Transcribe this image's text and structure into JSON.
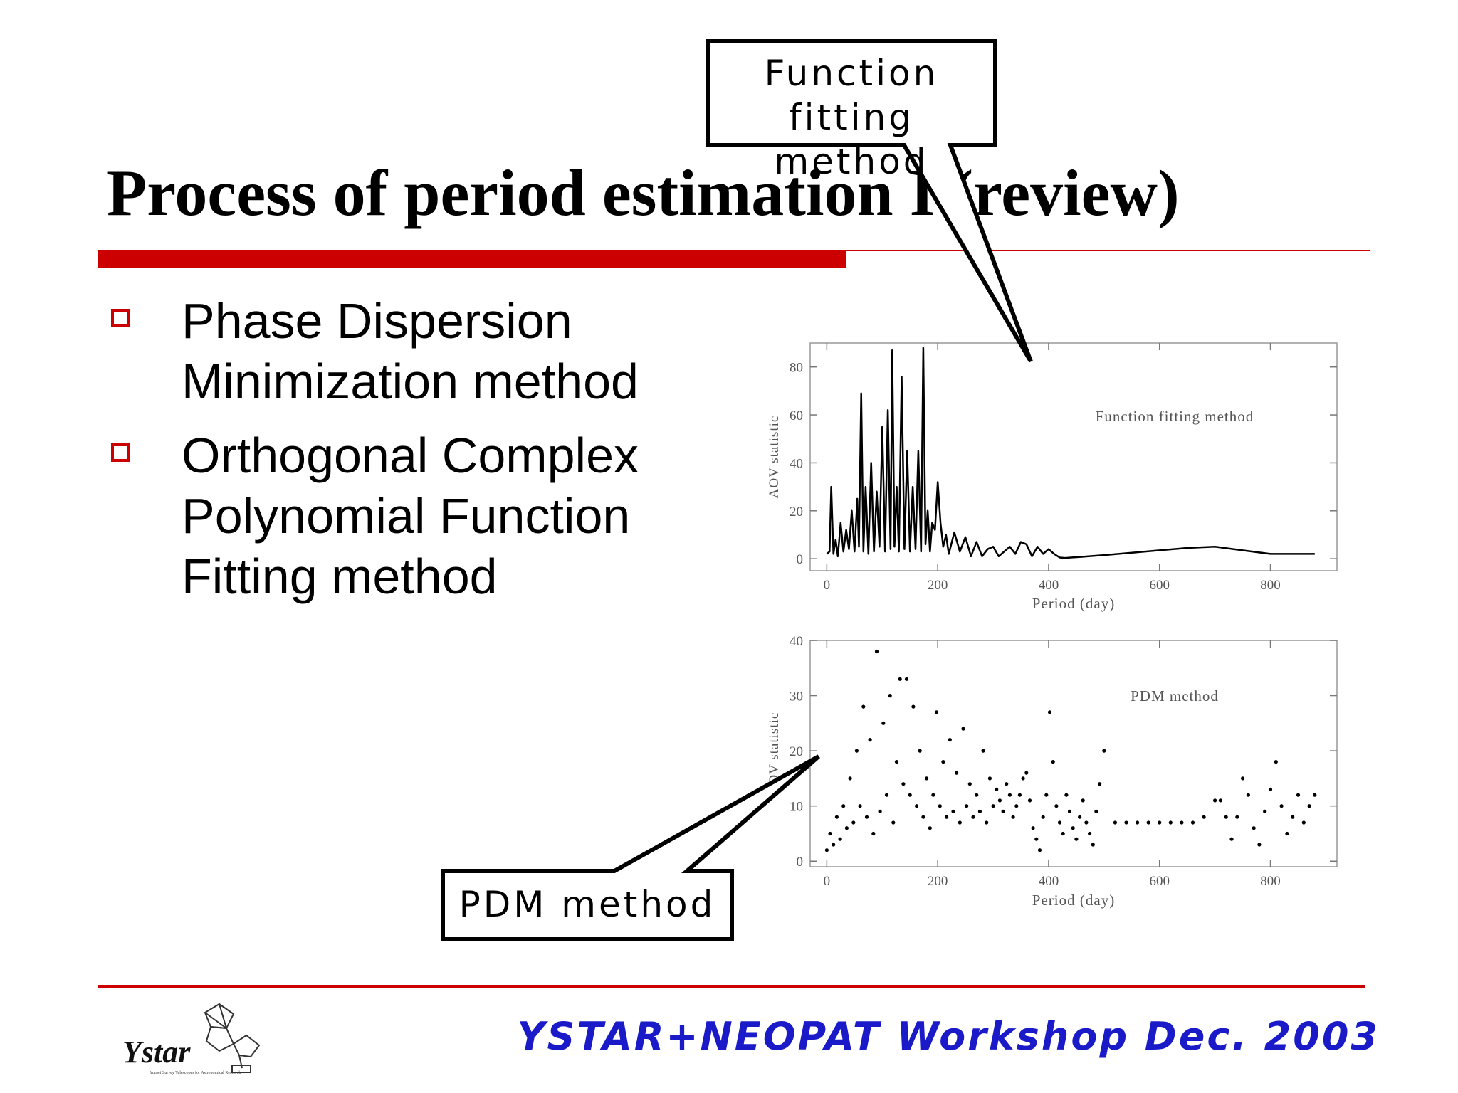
{
  "title": "Process of period estimation I (review)",
  "bullets": [
    {
      "lines": [
        "Phase Dispersion",
        "Minimization method"
      ]
    },
    {
      "lines": [
        "Orthogonal Complex",
        "Polynomial Function",
        "Fitting method"
      ]
    }
  ],
  "callouts": {
    "function_fitting": [
      "Function",
      "fitting",
      "method"
    ],
    "pdm": "PDM method"
  },
  "footer": "YSTAR+NEOPAT Workshop Dec. 2003",
  "logo": {
    "name": "Ystar",
    "subtitle": "Yonsei Survey Telescopes for Astronomical Research"
  },
  "colors": {
    "accent": "#cc0000",
    "footer": "#1a1ac8"
  },
  "chart_data": [
    {
      "type": "line",
      "title": "Function fitting method",
      "xlabel": "Period (day)",
      "ylabel": "AOV statistic",
      "xlim": [
        -30,
        920
      ],
      "ylim": [
        -5,
        90
      ],
      "xticks": [
        "0",
        "200",
        "400",
        "600",
        "800"
      ],
      "yticks": [
        "0",
        "20",
        "40",
        "60",
        "80"
      ],
      "grid": false,
      "series": [
        {
          "x": [
            0,
            5,
            8,
            12,
            16,
            20,
            25,
            30,
            35,
            40,
            45,
            50,
            55,
            58,
            62,
            66,
            70,
            75,
            80,
            85,
            90,
            95,
            100,
            105,
            110,
            115,
            118,
            122,
            126,
            130,
            135,
            140,
            145,
            150,
            155,
            160,
            165,
            170,
            174,
            178,
            182,
            186,
            190,
            195,
            200,
            205,
            210,
            215,
            220,
            230,
            240,
            250,
            260,
            270,
            280,
            290,
            300,
            310,
            320,
            330,
            340,
            350,
            360,
            370,
            380,
            390,
            400,
            410,
            420,
            430,
            440,
            460,
            500,
            550,
            600,
            650,
            700,
            750,
            800,
            850,
            880
          ],
          "y": [
            2,
            3,
            30,
            2,
            8,
            1,
            15,
            3,
            12,
            4,
            20,
            3,
            25,
            5,
            69,
            3,
            30,
            2,
            40,
            3,
            28,
            5,
            55,
            3,
            62,
            4,
            87,
            5,
            30,
            3,
            76,
            4,
            45,
            3,
            30,
            4,
            45,
            3,
            88,
            6,
            20,
            3,
            15,
            12,
            32,
            15,
            5,
            10,
            2,
            11,
            3,
            9,
            1,
            7,
            1,
            4,
            5,
            1,
            3,
            5,
            2,
            7,
            6,
            1,
            5,
            2,
            4,
            2,
            0.5,
            0.3,
            0.5,
            0.8,
            1.5,
            2.5,
            3.5,
            4.5,
            5,
            3.5,
            2,
            2,
            2
          ]
        }
      ]
    },
    {
      "type": "scatter",
      "title": "PDM method",
      "xlabel": "Period (day)",
      "ylabel": "AOV statistic",
      "xlim": [
        -30,
        920
      ],
      "ylim": [
        -1,
        40
      ],
      "xticks": [
        "0",
        "200",
        "400",
        "600",
        "800"
      ],
      "yticks": [
        "0",
        "10",
        "20",
        "30",
        "40"
      ],
      "grid": false,
      "series": [
        {
          "x": [
            0,
            6,
            12,
            18,
            24,
            30,
            36,
            42,
            48,
            54,
            60,
            66,
            72,
            78,
            84,
            90,
            96,
            102,
            108,
            114,
            120,
            126,
            132,
            138,
            144,
            150,
            156,
            162,
            168,
            174,
            180,
            186,
            192,
            198,
            204,
            210,
            216,
            222,
            228,
            234,
            240,
            246,
            252,
            258,
            264,
            270,
            276,
            282,
            288,
            294,
            300,
            306,
            312,
            318,
            324,
            330,
            336,
            342,
            348,
            354,
            360,
            366,
            372,
            378,
            384,
            390,
            396,
            402,
            408,
            414,
            420,
            426,
            432,
            438,
            444,
            450,
            456,
            462,
            468,
            474,
            480,
            486,
            492,
            500,
            520,
            540,
            560,
            580,
            600,
            620,
            640,
            660,
            680,
            700,
            710,
            720,
            730,
            740,
            750,
            760,
            770,
            780,
            790,
            800,
            810,
            820,
            830,
            840,
            850,
            860,
            870,
            880
          ],
          "y": [
            2,
            5,
            3,
            8,
            4,
            10,
            6,
            15,
            7,
            20,
            10,
            28,
            8,
            22,
            5,
            38,
            9,
            25,
            12,
            30,
            7,
            18,
            33,
            14,
            33,
            12,
            28,
            10,
            20,
            8,
            15,
            6,
            12,
            27,
            10,
            18,
            8,
            22,
            9,
            16,
            7,
            24,
            10,
            14,
            8,
            12,
            9,
            20,
            7,
            15,
            10,
            13,
            11,
            9,
            14,
            12,
            8,
            10,
            12,
            15,
            16,
            11,
            6,
            4,
            2,
            8,
            12,
            27,
            18,
            10,
            7,
            5,
            12,
            9,
            6,
            4,
            8,
            11,
            7,
            5,
            3,
            9,
            14,
            20,
            7,
            7,
            7,
            7,
            7,
            7,
            7,
            7,
            8,
            11,
            11,
            8,
            4,
            8,
            15,
            12,
            6,
            3,
            9,
            13,
            18,
            10,
            5,
            8,
            12,
            7,
            10,
            12
          ]
        }
      ]
    }
  ]
}
